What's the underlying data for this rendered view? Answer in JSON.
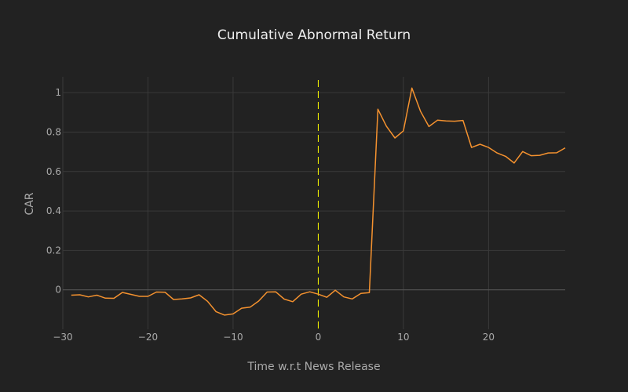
{
  "chart_data": {
    "type": "line",
    "title": "Cumulative Abnormal Return",
    "xlabel": "Time w.r.t News Release",
    "ylabel": "CAR",
    "xlim": [
      -30,
      29
    ],
    "ylim": [
      -0.2,
      1.08
    ],
    "grid": true,
    "x_ticks": [
      -30,
      -20,
      -10,
      0,
      10,
      20
    ],
    "y_ticks": [
      0,
      0.2,
      0.4,
      0.6,
      0.8,
      1
    ],
    "x_tick_labels": [
      "−30",
      "−20",
      "−10",
      "0",
      "10",
      "20"
    ],
    "y_tick_labels": [
      "0",
      "0.2",
      "0.4",
      "0.6",
      "0.8",
      "1"
    ],
    "vline": {
      "x": 0,
      "color": "#ffff00",
      "style": "dashed"
    },
    "colors": {
      "background": "#222222",
      "grid": "#3a3a3a",
      "zero_line": "#555555",
      "line": "#f5922f"
    },
    "series": [
      {
        "x": [
          -29,
          -28,
          -27,
          -26,
          -25,
          -24,
          -23,
          -22,
          -21,
          -20,
          -19,
          -18,
          -17,
          -16,
          -15,
          -14,
          -13,
          -12,
          -11,
          -10,
          -9,
          -8,
          -7,
          -6,
          -5,
          -4,
          -3,
          -2,
          -1,
          0,
          1,
          2,
          3,
          4,
          5,
          6,
          7,
          8,
          9,
          10,
          11,
          12,
          13,
          14,
          15,
          16,
          17,
          18,
          19,
          20,
          21,
          22,
          23,
          24,
          25,
          26,
          27,
          28,
          29
        ],
        "y": [
          -0.027,
          -0.025,
          -0.036,
          -0.027,
          -0.042,
          -0.043,
          -0.013,
          -0.023,
          -0.033,
          -0.033,
          -0.011,
          -0.012,
          -0.049,
          -0.046,
          -0.041,
          -0.025,
          -0.058,
          -0.111,
          -0.128,
          -0.122,
          -0.093,
          -0.088,
          -0.057,
          -0.011,
          -0.01,
          -0.047,
          -0.06,
          -0.022,
          -0.01,
          -0.022,
          -0.038,
          -0.002,
          -0.036,
          -0.046,
          -0.018,
          -0.014,
          0.916,
          0.83,
          0.77,
          0.806,
          1.023,
          0.906,
          0.828,
          0.86,
          0.856,
          0.855,
          0.859,
          0.722,
          0.738,
          0.722,
          0.694,
          0.677,
          0.643,
          0.701,
          0.68,
          0.682,
          0.694,
          0.695,
          0.72
        ]
      }
    ]
  }
}
